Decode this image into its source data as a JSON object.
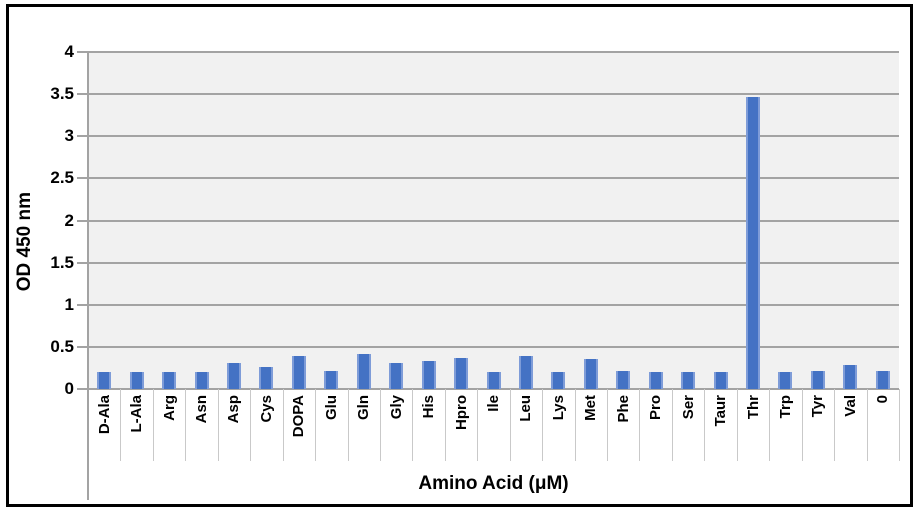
{
  "chart_data": {
    "type": "bar",
    "title": "",
    "xlabel": "Amino Acid (μM)",
    "ylabel": "OD 450 nm",
    "categories": [
      "D-Ala",
      "L-Ala",
      "Arg",
      "Asn",
      "Asp",
      "Cys",
      "DOPA",
      "Glu",
      "Gln",
      "Gly",
      "His",
      "Hpro",
      "Ile",
      "Leu",
      "Lys",
      "Met",
      "Phe",
      "Pro",
      "Ser",
      "Taur",
      "Thr",
      "Trp",
      "Tyr",
      "Val",
      "0"
    ],
    "values": [
      0.2,
      0.2,
      0.2,
      0.2,
      0.31,
      0.26,
      0.39,
      0.21,
      0.41,
      0.31,
      0.33,
      0.37,
      0.2,
      0.39,
      0.2,
      0.36,
      0.21,
      0.2,
      0.2,
      0.2,
      3.47,
      0.2,
      0.21,
      0.29,
      0.21
    ],
    "ylim": [
      0,
      4
    ],
    "ytick_values": [
      0,
      0.5,
      1,
      1.5,
      2,
      2.5,
      3,
      3.5,
      4
    ],
    "ytick_labels": [
      "0",
      "0.5",
      "1",
      "1.5",
      "2",
      "2.5",
      "3",
      "3.5",
      "4"
    ],
    "grid": true,
    "legend": "none",
    "colors": {
      "bar_fill": "#4472C4",
      "bar_edge": "#7E9CD8",
      "plot_bg": "#F1F1F1",
      "gridline": "#A3A3A3",
      "axis_line": "#A3A3A3",
      "category_divider": "#C9C9C9",
      "text": "#000000",
      "frame_border": "#000000",
      "page_bg": "#FFFFFF"
    }
  }
}
